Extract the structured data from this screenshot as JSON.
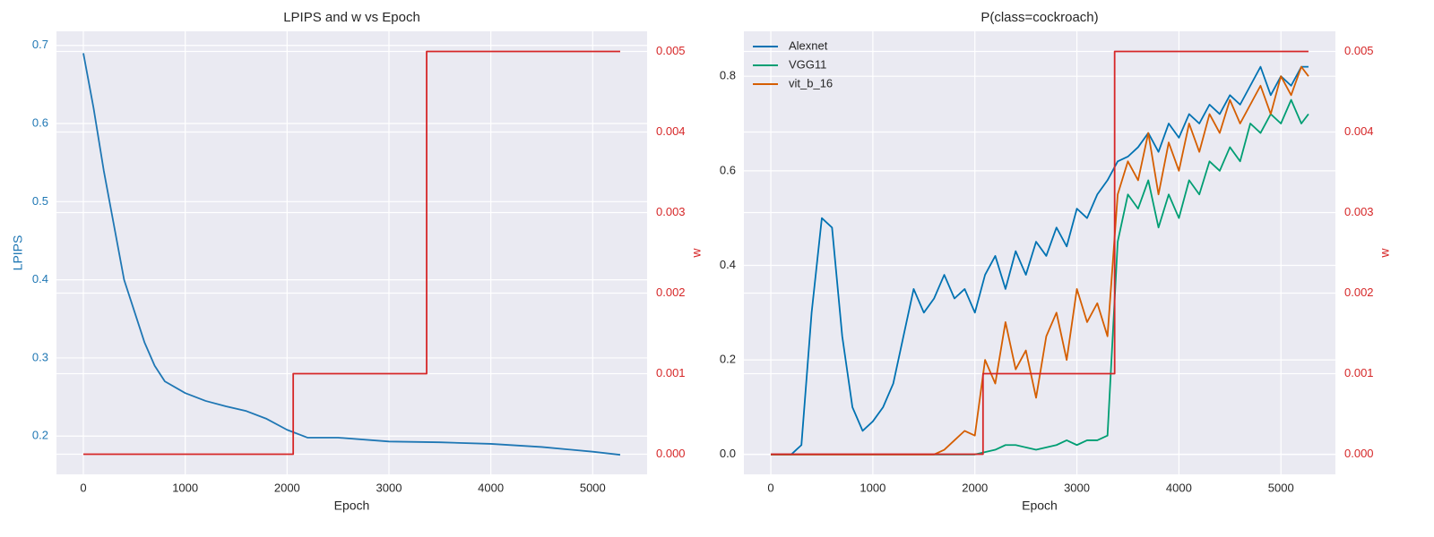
{
  "chart_data": [
    {
      "type": "line",
      "title": "LPIPS and w vs Epoch",
      "xlabel": "Epoch",
      "ylabel": "LPIPS",
      "y2label": "w",
      "xlim": [
        -264,
        5534
      ],
      "xticks": [
        0,
        1000,
        2000,
        3000,
        4000,
        5000
      ],
      "ylim": [
        0.151,
        0.718
      ],
      "yticks": [
        0.2,
        0.3,
        0.4,
        0.5,
        0.6,
        0.7
      ],
      "ycolor": "#1f77b4",
      "y2lim": [
        -0.00025,
        0.00525
      ],
      "y2ticks": [
        {
          "value": 0,
          "label": "0.000"
        },
        0.001,
        0.002,
        0.003,
        0.004,
        0.005
      ],
      "y2color": "#d62728",
      "grid": true,
      "series": [
        {
          "color": "#1f77b4",
          "x": [
            0,
            100,
            200,
            300,
            400,
            500,
            600,
            700,
            800,
            1000,
            1200,
            1400,
            1600,
            1800,
            2000,
            2200,
            2500,
            3000,
            3500,
            4000,
            4500,
            5000,
            5270
          ],
          "values": [
            0.69,
            0.62,
            0.54,
            0.47,
            0.4,
            0.36,
            0.32,
            0.29,
            0.27,
            0.255,
            0.245,
            0.238,
            0.232,
            0.222,
            0.208,
            0.198,
            0.198,
            0.193,
            0.192,
            0.19,
            0.186,
            0.18,
            0.176
          ]
        },
        {
          "color": "#d62728",
          "axis": "y2",
          "x": [
            0,
            2060,
            2060,
            3370,
            3370,
            5270
          ],
          "values": [
            0,
            0,
            0.001,
            0.001,
            0.005,
            0.005
          ]
        }
      ]
    },
    {
      "type": "line",
      "title": "P(class=cockroach)",
      "xlabel": "Epoch",
      "y2label": "w",
      "xlim": [
        -264,
        5534
      ],
      "xticks": [
        0,
        1000,
        2000,
        3000,
        4000,
        5000
      ],
      "ylim": [
        -0.042,
        0.895
      ],
      "yticks": [
        {
          "value": 0,
          "label": "0.0"
        },
        0.2,
        0.4,
        0.6,
        0.8
      ],
      "y2lim": [
        -0.00025,
        0.00525
      ],
      "y2ticks": [
        {
          "value": 0,
          "label": "0.000"
        },
        0.001,
        0.002,
        0.003,
        0.004,
        0.005
      ],
      "y2color": "#d62728",
      "grid": true,
      "legend": "upper left",
      "series": [
        {
          "name": "Alexnet",
          "color": "#0072b2",
          "x": [
            0,
            100,
            200,
            300,
            400,
            500,
            600,
            700,
            800,
            900,
            1000,
            1100,
            1200,
            1300,
            1400,
            1500,
            1600,
            1700,
            1800,
            1900,
            2000,
            2100,
            2200,
            2300,
            2400,
            2500,
            2600,
            2700,
            2800,
            2900,
            3000,
            3100,
            3200,
            3300,
            3400,
            3500,
            3600,
            3700,
            3800,
            3900,
            4000,
            4100,
            4200,
            4300,
            4400,
            4500,
            4600,
            4700,
            4800,
            4900,
            5000,
            5100,
            5200,
            5270
          ],
          "values": [
            0,
            0,
            0,
            0.02,
            0.3,
            0.5,
            0.48,
            0.25,
            0.1,
            0.05,
            0.07,
            0.1,
            0.15,
            0.25,
            0.35,
            0.3,
            0.33,
            0.38,
            0.33,
            0.35,
            0.3,
            0.38,
            0.42,
            0.35,
            0.43,
            0.38,
            0.45,
            0.42,
            0.48,
            0.44,
            0.52,
            0.5,
            0.55,
            0.58,
            0.62,
            0.63,
            0.65,
            0.68,
            0.64,
            0.7,
            0.67,
            0.72,
            0.7,
            0.74,
            0.72,
            0.76,
            0.74,
            0.78,
            0.82,
            0.76,
            0.8,
            0.78,
            0.82,
            0.82
          ]
        },
        {
          "name": "VGG11",
          "color": "#009e73",
          "x": [
            0,
            2000,
            2100,
            2200,
            2300,
            2400,
            2500,
            2600,
            2700,
            2800,
            2900,
            3000,
            3100,
            3200,
            3300,
            3400,
            3500,
            3600,
            3700,
            3800,
            3900,
            4000,
            4100,
            4200,
            4300,
            4400,
            4500,
            4600,
            4700,
            4800,
            4900,
            5000,
            5100,
            5200,
            5270
          ],
          "values": [
            0,
            0,
            0.005,
            0.01,
            0.02,
            0.02,
            0.015,
            0.01,
            0.015,
            0.02,
            0.03,
            0.02,
            0.03,
            0.03,
            0.04,
            0.45,
            0.55,
            0.52,
            0.58,
            0.48,
            0.55,
            0.5,
            0.58,
            0.55,
            0.62,
            0.6,
            0.65,
            0.62,
            0.7,
            0.68,
            0.72,
            0.7,
            0.75,
            0.7,
            0.72
          ]
        },
        {
          "name": "vit_b_16",
          "color": "#d55e00",
          "x": [
            0,
            1600,
            1700,
            1800,
            1900,
            2000,
            2100,
            2200,
            2300,
            2400,
            2500,
            2600,
            2700,
            2800,
            2900,
            3000,
            3100,
            3200,
            3300,
            3400,
            3500,
            3600,
            3700,
            3800,
            3900,
            4000,
            4100,
            4200,
            4300,
            4400,
            4500,
            4600,
            4700,
            4800,
            4900,
            5000,
            5100,
            5200,
            5270
          ],
          "values": [
            0,
            0,
            0.01,
            0.03,
            0.05,
            0.04,
            0.2,
            0.15,
            0.28,
            0.18,
            0.22,
            0.12,
            0.25,
            0.3,
            0.2,
            0.35,
            0.28,
            0.32,
            0.25,
            0.55,
            0.62,
            0.58,
            0.68,
            0.55,
            0.66,
            0.6,
            0.7,
            0.64,
            0.72,
            0.68,
            0.75,
            0.7,
            0.74,
            0.78,
            0.72,
            0.8,
            0.76,
            0.82,
            0.8
          ]
        },
        {
          "color": "#d62728",
          "axis": "y2",
          "x": [
            0,
            2080,
            2080,
            3370,
            3370,
            5270
          ],
          "values": [
            0,
            0,
            0.001,
            0.001,
            0.005,
            0.005
          ]
        }
      ]
    }
  ]
}
